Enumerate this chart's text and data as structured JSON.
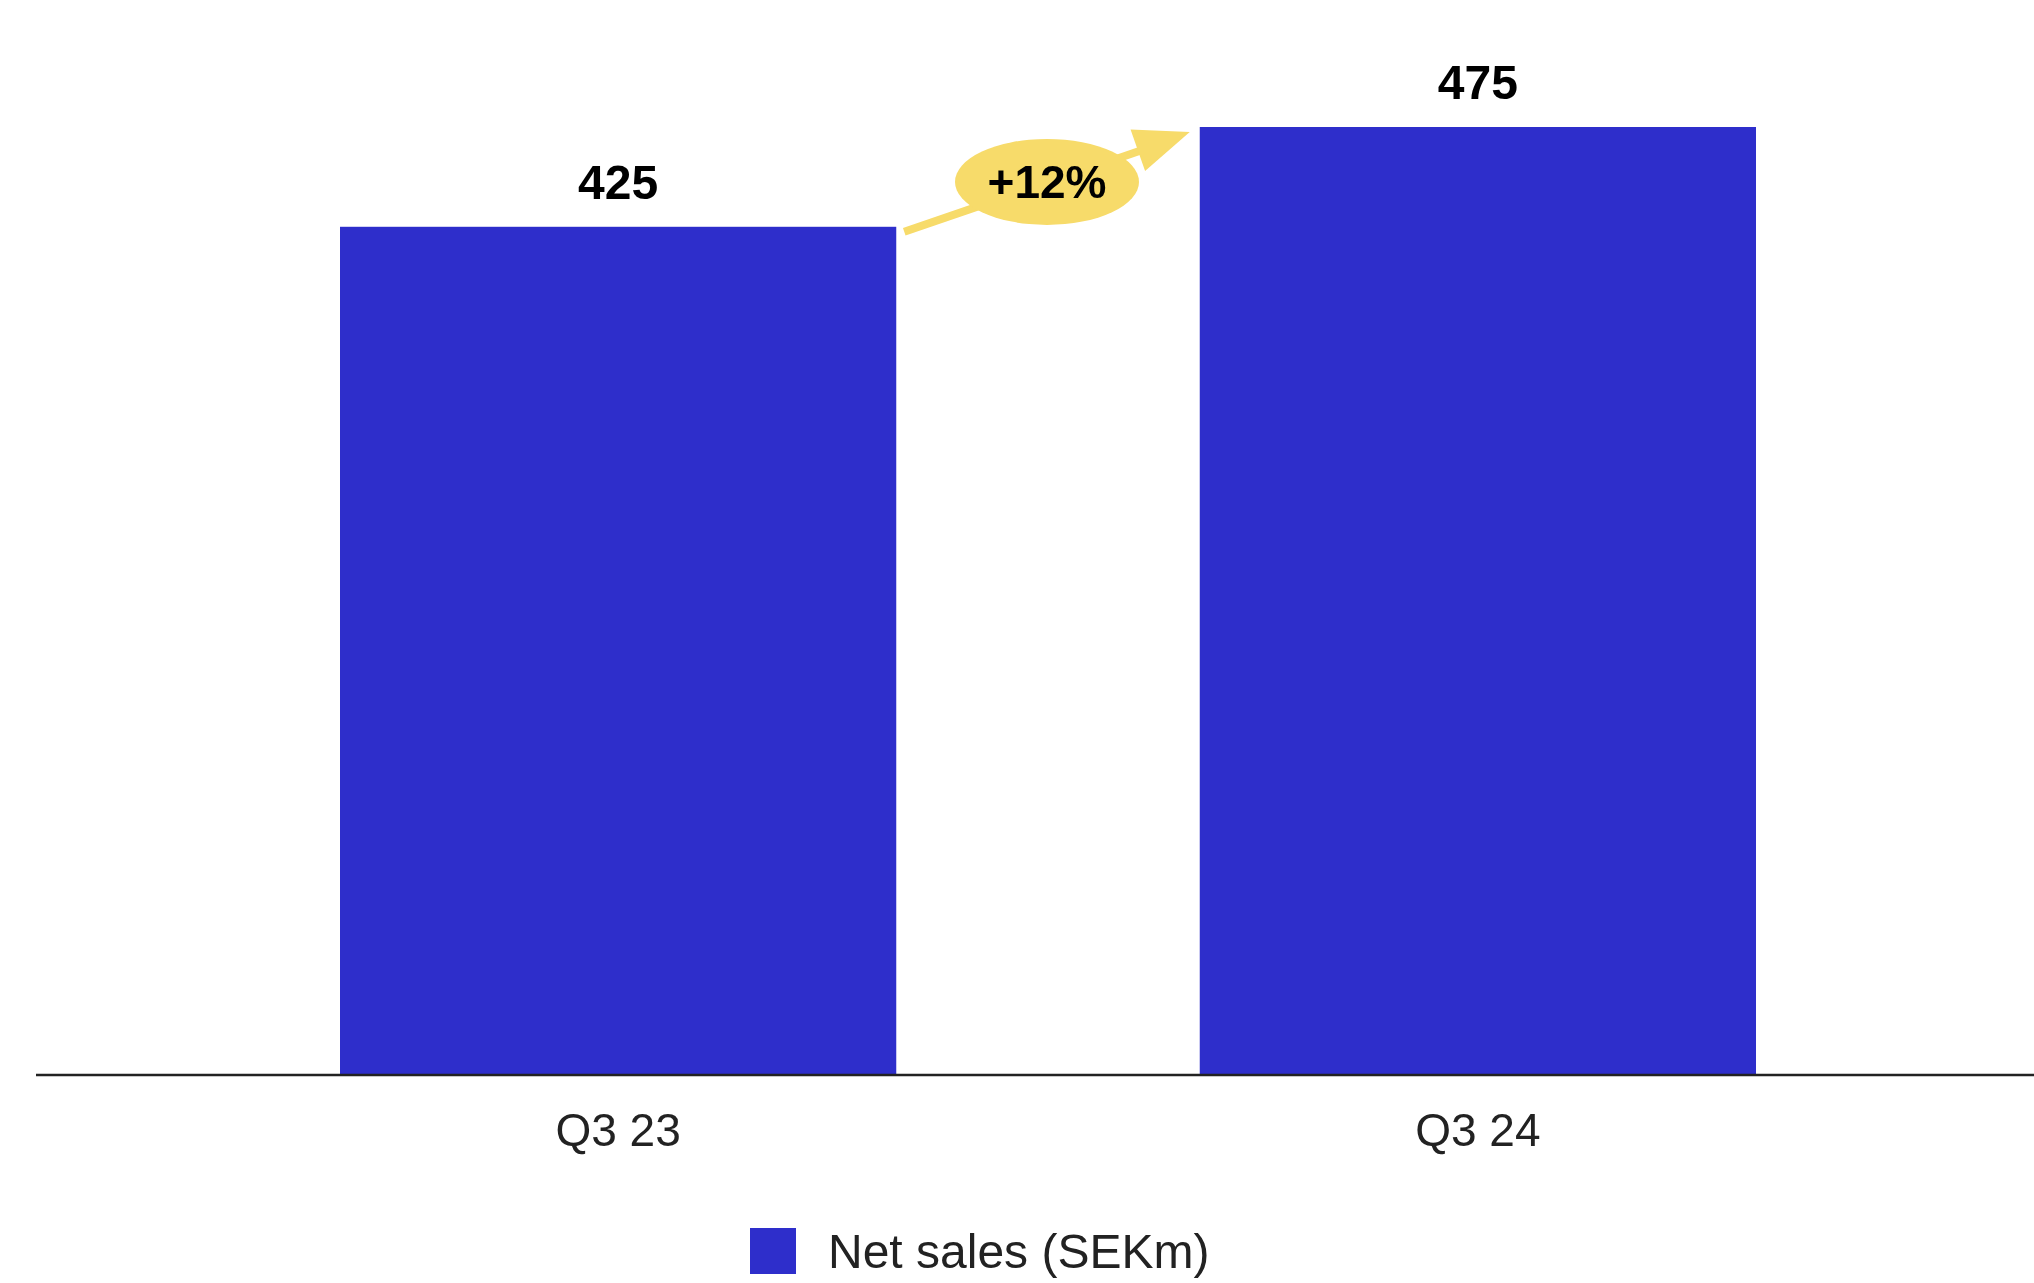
{
  "chart_data": {
    "type": "bar",
    "categories": [
      "Q3 23",
      "Q3 24"
    ],
    "series": [
      {
        "name": "Net sales (SEKm)",
        "color": "#2e2ecb",
        "values": [
          425,
          475
        ]
      }
    ],
    "data_labels": true,
    "legend": "bottom",
    "annotations": [
      "+12%"
    ]
  }
}
